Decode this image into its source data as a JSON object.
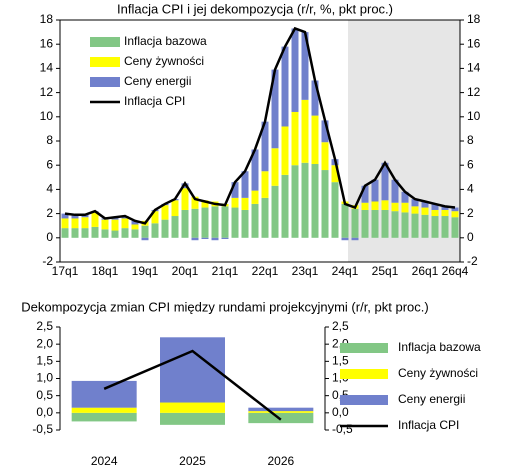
{
  "chart_data": [
    {
      "type": "bar",
      "stacked": true,
      "title": "Inflacja CPI i jej dekompozycja (r/r, %, pkt proc.)",
      "categories": [
        "17q1",
        null,
        null,
        null,
        "18q1",
        null,
        null,
        null,
        "19q1",
        null,
        null,
        null,
        "20q1",
        null,
        null,
        null,
        "21q1",
        null,
        null,
        null,
        "22q1",
        null,
        null,
        null,
        "23q1",
        null,
        null,
        null,
        "24q1",
        null,
        null,
        null,
        "25q1",
        null,
        null,
        null,
        "26q1",
        null,
        null,
        "26q4"
      ],
      "series": [
        {
          "name": "Inflacja bazowa",
          "color": "#82c785",
          "values": [
            0.8,
            0.8,
            0.8,
            0.9,
            0.7,
            0.6,
            0.8,
            0.7,
            1.0,
            1.2,
            1.5,
            1.8,
            2.3,
            2.4,
            2.5,
            2.6,
            2.6,
            2.5,
            2.3,
            2.8,
            3.3,
            4.3,
            5.2,
            6.0,
            6.2,
            6.1,
            5.6,
            4.6,
            2.8,
            2.4,
            2.3,
            2.3,
            2.3,
            2.2,
            2.1,
            2.0,
            1.9,
            1.8,
            1.8,
            1.7
          ]
        },
        {
          "name": "Ceny żywności",
          "color": "#ffff00",
          "values": [
            0.8,
            0.8,
            0.9,
            1.2,
            0.8,
            0.9,
            0.8,
            0.4,
            0.4,
            1.0,
            1.2,
            1.3,
            1.8,
            1.0,
            0.6,
            0.4,
            0.2,
            0.8,
            1.0,
            1.1,
            2.2,
            3.1,
            4.0,
            4.4,
            5.2,
            4.0,
            2.3,
            1.4,
            0.2,
            0.3,
            0.6,
            0.7,
            0.8,
            0.7,
            0.8,
            0.6,
            0.6,
            0.5,
            0.5,
            0.5
          ]
        },
        {
          "name": "Ceny energii",
          "color": "#7080cc",
          "values": [
            0.4,
            0.3,
            0.2,
            0.1,
            0.1,
            0.2,
            0.2,
            0.3,
            -0.2,
            0.1,
            0.1,
            0.1,
            0.4,
            -0.2,
            -0.1,
            -0.2,
            -0.1,
            1.3,
            2.2,
            3.4,
            4.1,
            6.5,
            6.6,
            6.9,
            5.6,
            2.9,
            1.8,
            0.5,
            -0.2,
            -0.2,
            1.4,
            1.8,
            3.1,
            1.9,
            0.9,
            0.6,
            0.5,
            0.5,
            0.3,
            0.3
          ]
        },
        {
          "name": "Inflacja CPI",
          "type": "line",
          "color": "#000000",
          "values": [
            2.0,
            1.9,
            1.9,
            2.2,
            1.6,
            1.7,
            1.8,
            1.4,
            1.2,
            2.3,
            2.8,
            3.2,
            4.5,
            3.2,
            3.0,
            2.8,
            2.7,
            4.6,
            5.5,
            7.3,
            9.6,
            13.9,
            15.8,
            17.3,
            17.0,
            13.0,
            9.7,
            6.5,
            2.8,
            2.5,
            4.3,
            4.8,
            6.2,
            4.8,
            3.8,
            3.2,
            3.0,
            2.8,
            2.6,
            2.5
          ]
        }
      ],
      "ylim": [
        -2,
        18
      ],
      "yticks": [
        -2,
        0,
        2,
        4,
        6,
        8,
        10,
        12,
        14,
        16,
        18
      ],
      "y2lim": [
        -2,
        18
      ],
      "y2ticks": [
        -2,
        0,
        2,
        4,
        6,
        8,
        10,
        12,
        14,
        16,
        18
      ],
      "legend": "upper left"
    },
    {
      "type": "bar",
      "stacked": true,
      "title": "Dekompozycja zmian CPI między rundami projekcyjnymi (r/r, pkt proc.)",
      "categories": [
        "2024",
        "2025",
        "2026"
      ],
      "series": [
        {
          "name": "Inflacja bazowa",
          "color": "#82c785",
          "values": [
            -0.25,
            -0.35,
            -0.3
          ]
        },
        {
          "name": "Ceny żywności",
          "color": "#ffff00",
          "values": [
            0.15,
            0.3,
            0.05
          ]
        },
        {
          "name": "Ceny energii",
          "color": "#7080cc",
          "values": [
            0.78,
            1.9,
            0.1
          ]
        },
        {
          "name": "Inflacja CPI",
          "type": "line",
          "color": "#000000",
          "values": [
            0.7,
            1.8,
            -0.2
          ]
        }
      ],
      "ylim": [
        -0.5,
        2.5
      ],
      "yticks": [
        {
          "value": -0.5,
          "label": "-0,5"
        },
        {
          "value": 0,
          "label": "0,0"
        },
        {
          "value": 0.5,
          "label": "0,5"
        },
        {
          "value": 1,
          "label": "1,0"
        },
        {
          "value": 1.5,
          "label": "1,5"
        },
        {
          "value": 2,
          "label": "2,0"
        },
        {
          "value": 2.5,
          "label": "2,5"
        }
      ],
      "y2lim": [
        -0.5,
        2.5
      ],
      "y2ticks": [
        {
          "value": -0.5,
          "label": "-0,5"
        },
        {
          "value": 0,
          "label": "0,0"
        },
        {
          "value": 0.5,
          "label": "0,5"
        },
        {
          "value": 1,
          "label": "1,0"
        },
        {
          "value": 1.5,
          "label": "1,5"
        },
        {
          "value": 2,
          "label": "2,0"
        },
        {
          "value": 2.5,
          "label": "2,5"
        }
      ],
      "legend": "right"
    }
  ]
}
